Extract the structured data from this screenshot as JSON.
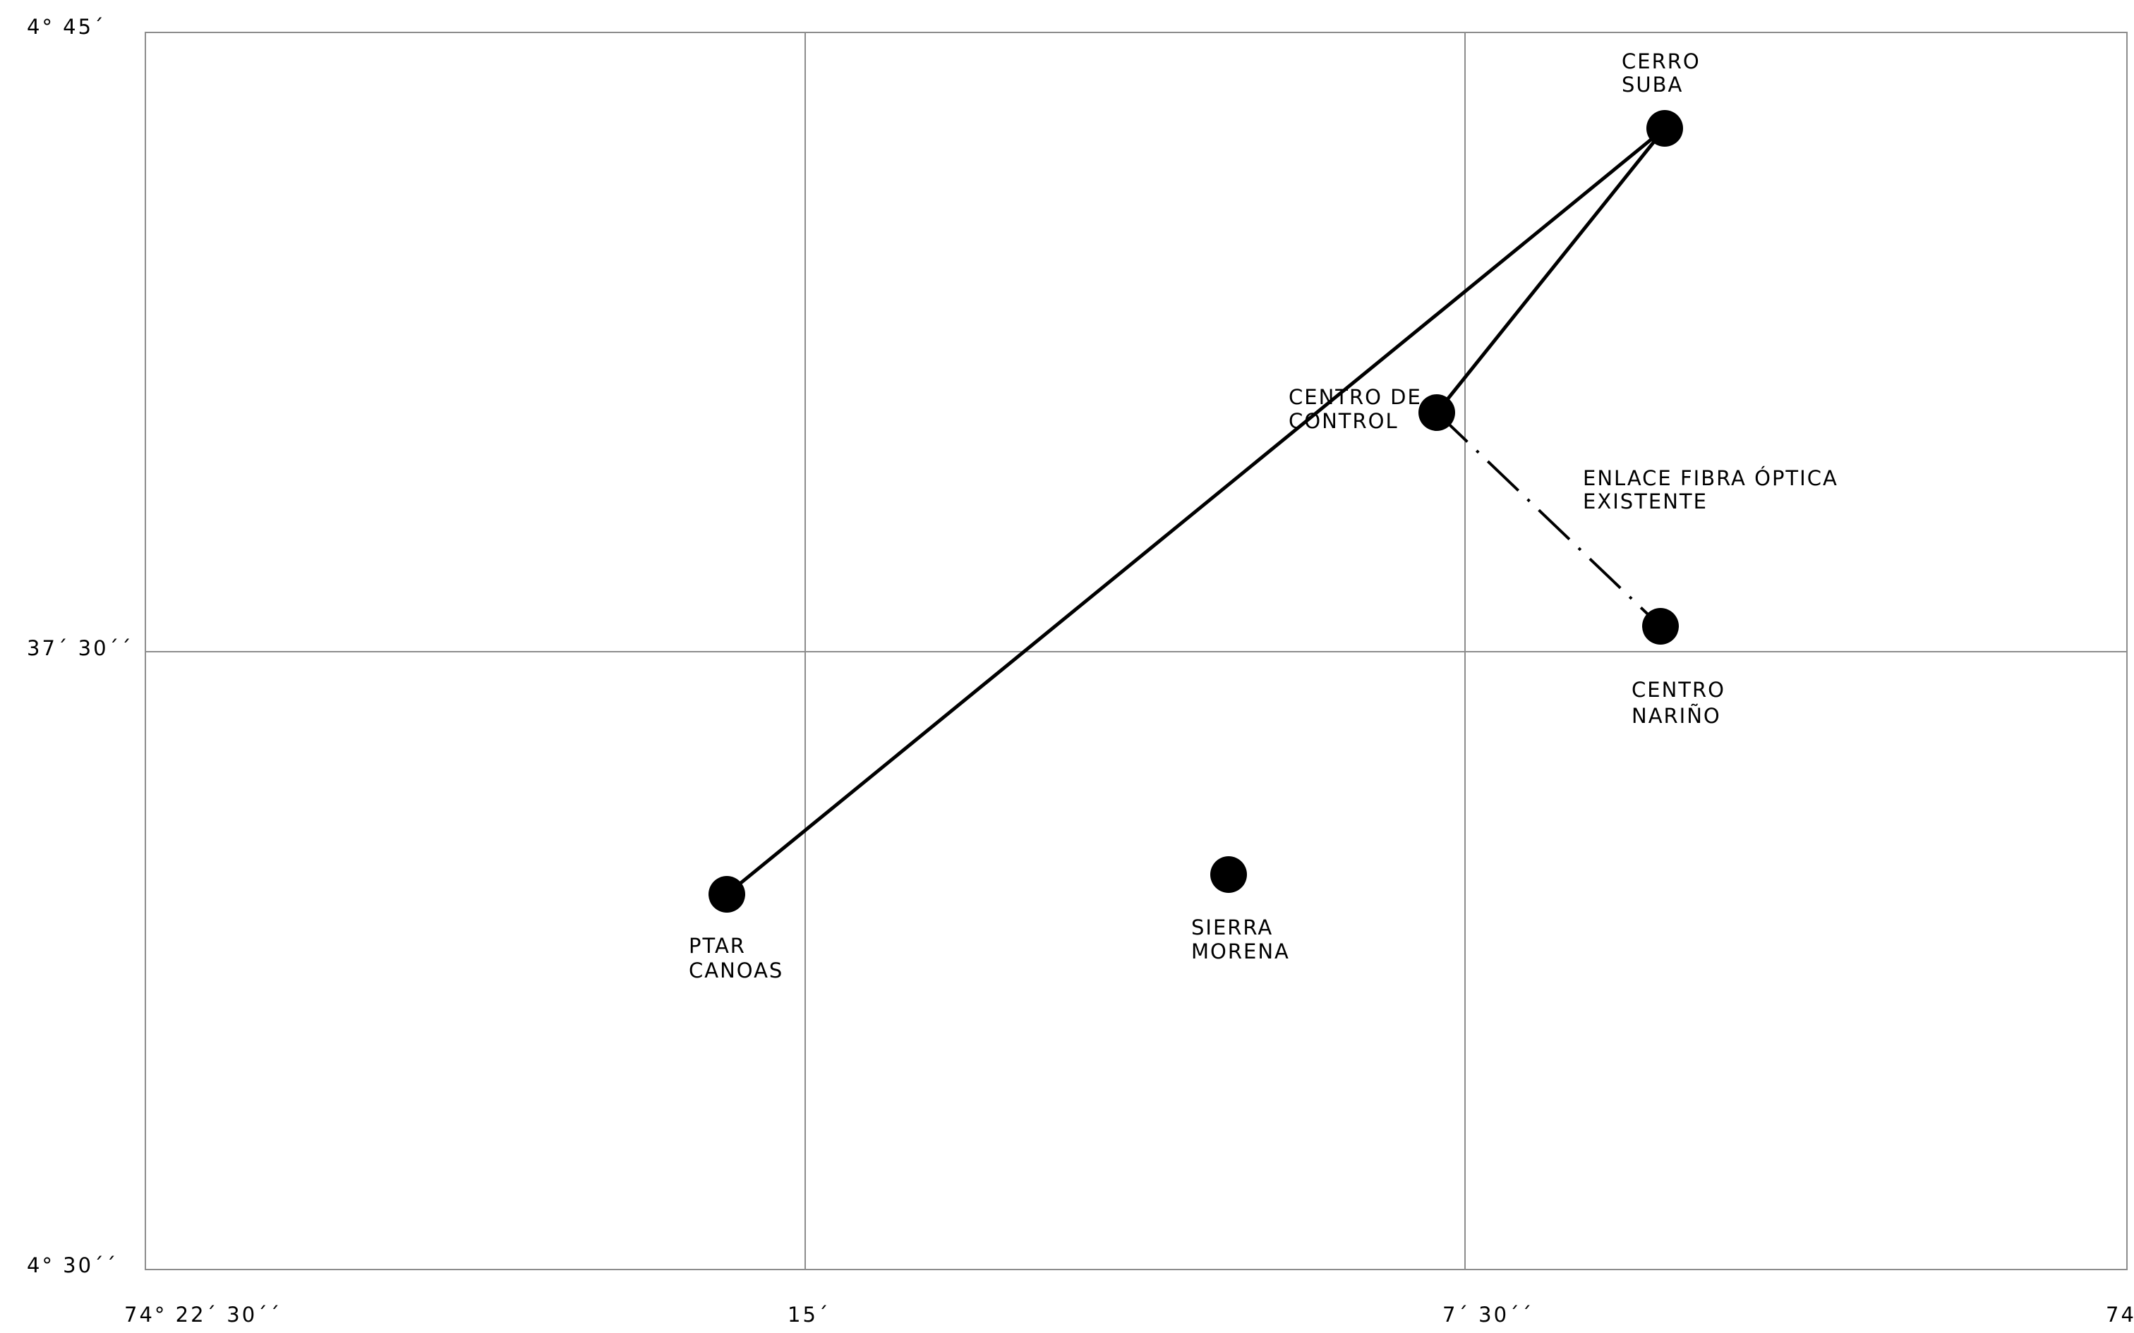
{
  "map": {
    "lat_ticks": [
      {
        "id": "top",
        "label": "4° 45´"
      },
      {
        "id": "mid",
        "label": "37´ 30´´"
      },
      {
        "id": "bottom",
        "label": "4° 30´´"
      }
    ],
    "lon_ticks": [
      {
        "id": "left",
        "label": "74° 22´ 30´´"
      },
      {
        "id": "q1",
        "label": "15´"
      },
      {
        "id": "q2",
        "label": "7´ 30´´"
      },
      {
        "id": "right",
        "label": "74°"
      }
    ],
    "stations": [
      {
        "id": "cerro-suba",
        "lines": [
          "CERRO",
          "SUBA"
        ]
      },
      {
        "id": "centro-control",
        "lines": [
          "CENTRO DE",
          "CONTROL"
        ]
      },
      {
        "id": "centro-narino",
        "lines": [
          "CENTRO",
          "NARIÑO"
        ]
      },
      {
        "id": "ptar-canoas",
        "lines": [
          "PTAR",
          "CANOAS"
        ]
      },
      {
        "id": "sierra-morena",
        "lines": [
          "SIERRA",
          "MORENA"
        ]
      }
    ],
    "links": [
      {
        "from": "ptar-canoas",
        "to": "cerro-suba",
        "style": "solid"
      },
      {
        "from": "centro-control",
        "to": "cerro-suba",
        "style": "solid"
      },
      {
        "from": "centro-control",
        "to": "centro-narino",
        "style": "dash-dot"
      }
    ],
    "annotation": {
      "lines": [
        "ENLACE FIBRA ÓPTICA",
        "EXISTENTE"
      ]
    },
    "colors": {
      "grid": "#8c8c8c",
      "marker": "#000000",
      "link": "#000000"
    }
  }
}
